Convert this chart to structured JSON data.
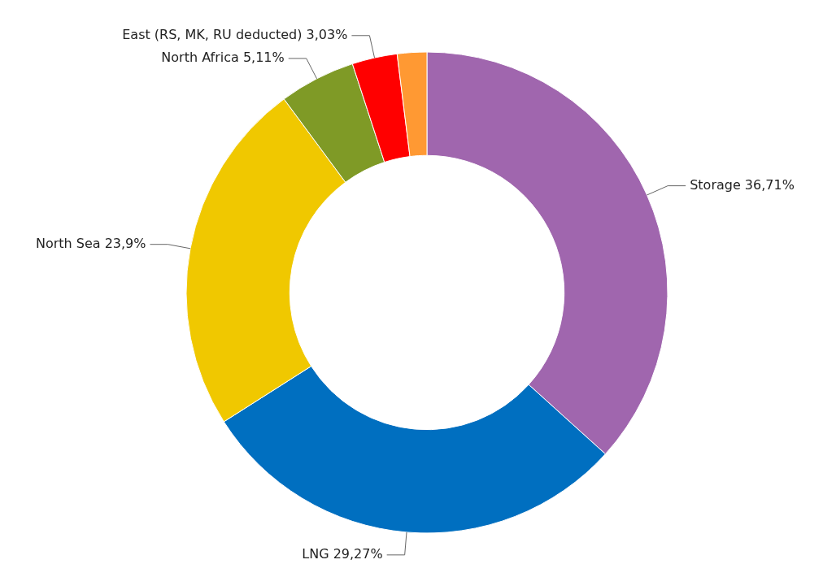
{
  "chart_data": {
    "type": "donut",
    "categories": [
      "Storage",
      "LNG",
      "North Sea",
      "North Africa",
      "East (RS, MK, RU deducted)",
      null
    ],
    "values": [
      36.71,
      29.27,
      23.9,
      5.11,
      3.03,
      1.98
    ],
    "colors": [
      "#a066ae",
      "#006fc0",
      "#f0c800",
      "#7f9a26",
      "#ff0000",
      "#ff9933"
    ],
    "value_labels": [
      "36,71%",
      "29,27%",
      "23,9%",
      "5,11%",
      "3,03%",
      null
    ]
  }
}
